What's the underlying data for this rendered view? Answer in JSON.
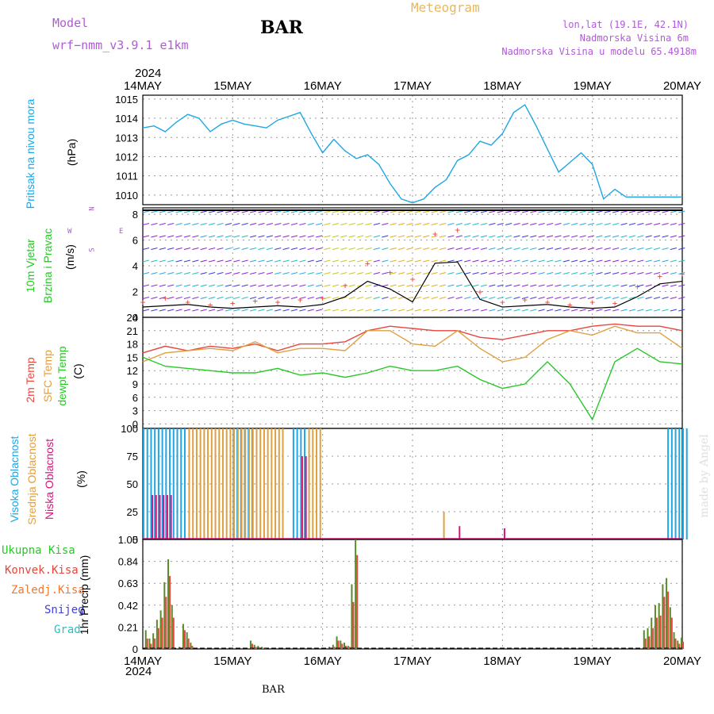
{
  "header": {
    "model_label": "Model",
    "model_name": "wrf−nmm_v3.9.1 e1km",
    "station": "BAR",
    "meteogram": "Meteogram",
    "lonlat": "lon,lat (19.1E, 42.1N)",
    "elevation": "Nadmorska Visina 6m",
    "model_elevation": "Nadmorska Visina u modelu 65.4918m",
    "year_top": "2024",
    "year_bottom": "2024",
    "footer_station": "BAR",
    "credit": "made by Angel"
  },
  "colors": {
    "pressure": "#1ea6e6",
    "t2m": "#e8453c",
    "tsfc": "#e0a040",
    "dewpt": "#28c828",
    "high_cloud": "#1ea6e6",
    "mid_cloud": "#e0a040",
    "low_cloud": "#d0197a",
    "total_precip": "#5a8a28",
    "conv_precip": "#e8453c",
    "purple_text": "#b05ad6"
  },
  "dates": [
    "14MAY",
    "15MAY",
    "16MAY",
    "17MAY",
    "18MAY",
    "19MAY",
    "20MAY"
  ],
  "panels": {
    "pressure": {
      "ylabel_1": "Pritisak na nivou mora",
      "unit": "(hPa)"
    },
    "wind": {
      "ylabel_1": "10m Vjetar",
      "ylabel_2": "Brzina i Pravac",
      "unit": "(m/s)",
      "compass_ns": "N",
      "compass_sw": "S",
      "compass_w": "W",
      "compass_e": "E"
    },
    "temp": {
      "ylabel_1": "2m Temp",
      "ylabel_2": "SFC Temp",
      "ylabel_3": "dewpt Temp",
      "unit": "(C)"
    },
    "cloud": {
      "ylabel_1": "Visoka Oblacnost",
      "ylabel_2": "Srednja Oblacnost",
      "ylabel_3": "Niska Oblacnost",
      "unit": "(%)"
    },
    "precip": {
      "legend": [
        "Ukupna Kisa",
        "Konvek.Kisa",
        "Zaledj.Kisa",
        "Snijeg",
        "Grad"
      ],
      "legend_colors": [
        "#28c828",
        "#e8453c",
        "#f07830",
        "#4040e0",
        "#28c0c0"
      ],
      "unit": "1hr Precip (mm)"
    }
  },
  "chart_data": [
    {
      "type": "line",
      "name": "pressure",
      "ylim": [
        1009.5,
        1015.2
      ],
      "yticks": [
        1010,
        1011,
        1012,
        1013,
        1014,
        1015
      ],
      "x_hours": [
        0,
        3,
        6,
        9,
        12,
        15,
        18,
        21,
        24,
        27,
        30,
        33,
        36,
        39,
        42,
        45,
        48,
        51,
        54,
        57,
        60,
        63,
        66,
        69,
        72,
        75,
        78,
        81,
        84,
        87,
        90,
        93,
        96,
        99,
        102,
        105,
        108,
        111,
        114,
        117,
        120,
        123,
        126,
        129,
        132,
        135,
        138,
        141,
        144
      ],
      "values": [
        1013.5,
        1013.6,
        1013.3,
        1013.8,
        1014.2,
        1014.0,
        1013.3,
        1013.7,
        1013.9,
        1013.7,
        1013.6,
        1013.5,
        1013.9,
        1014.1,
        1014.3,
        1013.2,
        1012.2,
        1012.9,
        1012.3,
        1011.9,
        1012.1,
        1011.6,
        1010.6,
        1009.8,
        1009.6,
        1009.8,
        1010.4,
        1010.8,
        1011.8,
        1012.1,
        1012.8,
        1012.6,
        1013.2,
        1014.3,
        1014.7,
        1013.6,
        1012.4,
        1011.2,
        1011.7,
        1012.2,
        1011.6,
        1009.8,
        1010.3,
        1009.9,
        1009.9,
        1009.9,
        1009.9,
        1009.9,
        1009.9
      ]
    },
    {
      "type": "scatter",
      "name": "wind",
      "ylim": [
        0,
        8.5
      ],
      "yticks": [
        0,
        2,
        4,
        6,
        8
      ],
      "x_hours": [
        0,
        6,
        12,
        18,
        24,
        30,
        36,
        42,
        48,
        54,
        60,
        66,
        72,
        78,
        84,
        90,
        96,
        102,
        108,
        114,
        120,
        126,
        132,
        138,
        144
      ],
      "speed": [
        0.8,
        0.9,
        1.0,
        0.8,
        0.7,
        0.8,
        0.9,
        0.8,
        1.0,
        1.6,
        2.8,
        2.2,
        1.2,
        4.2,
        4.3,
        1.4,
        0.8,
        0.9,
        1.0,
        0.8,
        0.7,
        0.8,
        1.6,
        2.6,
        2.8
      ],
      "gust": [
        1.2,
        1.5,
        1.2,
        1.0,
        1.1,
        1.3,
        1.2,
        1.4,
        1.5,
        2.5,
        4.2,
        3.5,
        3.0,
        6.5,
        6.8,
        2.0,
        1.2,
        1.4,
        1.2,
        1.0,
        1.2,
        1.1,
        2.4,
        3.2,
        3.4
      ]
    },
    {
      "type": "line",
      "name": "temperature",
      "ylim": [
        -1,
        24
      ],
      "yticks": [
        0,
        3,
        6,
        9,
        12,
        15,
        18,
        21,
        24
      ],
      "x_hours": [
        0,
        6,
        12,
        18,
        24,
        30,
        36,
        42,
        48,
        54,
        60,
        66,
        72,
        78,
        84,
        90,
        96,
        102,
        108,
        114,
        120,
        126,
        132,
        138,
        144
      ],
      "series": [
        {
          "name": "2m Temp",
          "values": [
            16,
            17.5,
            16.5,
            17.5,
            17,
            18,
            16.5,
            18,
            18,
            18.5,
            21,
            22,
            21.5,
            21,
            21,
            19.5,
            19,
            20,
            21,
            21,
            22,
            22.5,
            22,
            22,
            21
          ]
        },
        {
          "name": "SFC Temp",
          "values": [
            14,
            16,
            16.5,
            17,
            16.5,
            18.5,
            16,
            17,
            17,
            16.5,
            21,
            21,
            18,
            17.5,
            21,
            17,
            14,
            15,
            19,
            21,
            20,
            22,
            20.5,
            20.5,
            17
          ]
        },
        {
          "name": "dewpt Temp",
          "values": [
            15,
            13,
            12.5,
            12,
            11.5,
            11.5,
            12.5,
            11,
            11.5,
            10.5,
            11.5,
            13,
            12,
            12,
            13,
            10,
            8,
            9,
            14,
            9,
            1,
            14,
            17,
            14,
            13.5
          ]
        }
      ]
    },
    {
      "type": "bar",
      "name": "cloud",
      "ylim": [
        0,
        100
      ],
      "yticks": [
        0,
        25,
        50,
        75,
        100
      ],
      "series": [
        {
          "name": "Visoka Oblacnost",
          "spans": [
            [
              0,
              12,
              100
            ],
            [
              24,
              30,
              100
            ],
            [
              40,
              44,
              100
            ],
            [
              140,
              146,
              100
            ]
          ]
        },
        {
          "name": "Srednja Oblacnost",
          "spans": [
            [
              12,
              38,
              100
            ],
            [
              44,
              48,
              100
            ],
            [
              80,
              81,
              25
            ]
          ]
        },
        {
          "name": "Niska Oblacnost",
          "spans": [
            [
              2,
              8,
              40
            ],
            [
              42,
              44,
              75
            ],
            [
              96,
              97,
              10
            ],
            [
              84,
              85,
              12
            ]
          ]
        }
      ]
    },
    {
      "type": "bar",
      "name": "precip",
      "ylim": [
        0,
        1.05
      ],
      "yticks": [
        0,
        0.21,
        0.42,
        0.63,
        0.84,
        1.05
      ],
      "x_hours": [
        1,
        2,
        3,
        4,
        5,
        6,
        7,
        8,
        9,
        10,
        11,
        12,
        13,
        14,
        15,
        16,
        17,
        18,
        24,
        29,
        30,
        31,
        32,
        33,
        34,
        35,
        36,
        50,
        51,
        52,
        53,
        54,
        55,
        56,
        57,
        58,
        59,
        60,
        61,
        62,
        63,
        64,
        65,
        66,
        134,
        135,
        136,
        137,
        138,
        139,
        140,
        141,
        142,
        143,
        144
      ],
      "total": [
        0.18,
        0.1,
        0.15,
        0.28,
        0.37,
        0.64,
        0.86,
        0.42,
        0.0,
        0.02,
        0.24,
        0.16,
        0.06,
        0.0,
        0.0,
        0.0,
        0.0,
        0.0,
        0.01,
        0.08,
        0.04,
        0.03,
        0.02,
        0.01,
        0.0,
        0.0,
        0.0,
        0.02,
        0.04,
        0.12,
        0.08,
        0.06,
        0.03,
        0.62,
        1.05,
        0.0,
        0.0,
        0.0,
        0.0,
        0.0,
        0.0,
        0.0,
        0.0,
        0.0,
        0.18,
        0.2,
        0.3,
        0.42,
        0.44,
        0.62,
        0.68,
        0.4,
        0.16,
        0.08,
        0.11
      ],
      "convective": [
        0.1,
        0.05,
        0.1,
        0.2,
        0.3,
        0.5,
        0.7,
        0.3,
        0.0,
        0.0,
        0.18,
        0.1,
        0.03,
        0.0,
        0.0,
        0.0,
        0.0,
        0.0,
        0.0,
        0.05,
        0.02,
        0.01,
        0.01,
        0.0,
        0.0,
        0.0,
        0.0,
        0.01,
        0.02,
        0.08,
        0.05,
        0.03,
        0.02,
        0.45,
        0.9,
        0.0,
        0.0,
        0.0,
        0.0,
        0.0,
        0.0,
        0.0,
        0.0,
        0.0,
        0.1,
        0.12,
        0.2,
        0.3,
        0.32,
        0.5,
        0.55,
        0.3,
        0.1,
        0.05,
        0.07
      ]
    }
  ]
}
